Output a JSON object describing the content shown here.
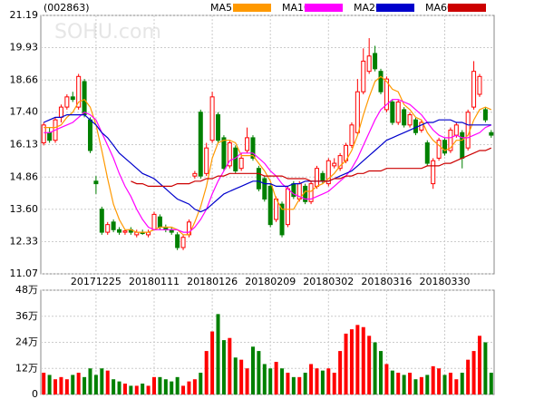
{
  "chart_data": [
    {
      "type": "candlestick",
      "code": "(002863)",
      "watermark": "SOHU.com",
      "categories": [
        null,
        null,
        null,
        null,
        null,
        null,
        null,
        null,
        null,
        "20171225",
        null,
        null,
        null,
        null,
        null,
        null,
        null,
        null,
        null,
        "20180111",
        null,
        null,
        null,
        null,
        null,
        null,
        null,
        null,
        null,
        "20180126",
        null,
        null,
        null,
        null,
        null,
        null,
        null,
        null,
        null,
        "20180209",
        null,
        null,
        null,
        null,
        null,
        null,
        null,
        null,
        null,
        "20180302",
        null,
        null,
        null,
        null,
        null,
        null,
        null,
        null,
        null,
        "20180316",
        null,
        null,
        null,
        null,
        null,
        null,
        null,
        null,
        null,
        "20180330",
        null,
        null,
        null,
        null,
        null,
        null,
        null,
        null
      ],
      "open": [
        16.2,
        16.6,
        16.3,
        17.2,
        17.6,
        18.0,
        17.6,
        18.6,
        17.1,
        14.7,
        13.6,
        12.7,
        13.1,
        12.8,
        12.7,
        12.8,
        12.6,
        12.7,
        12.6,
        12.8,
        13.3,
        12.9,
        12.8,
        12.6,
        12.1,
        12.6,
        14.9,
        17.4,
        15.0,
        16.3,
        17.3,
        16.4,
        15.3,
        16.0,
        15.2,
        15.9,
        16.4,
        15.2,
        14.8,
        14.5,
        13.2,
        13.8,
        13.0,
        14.6,
        14.0,
        14.5,
        13.9,
        14.5,
        15.0,
        14.6,
        15.3,
        15.2,
        15.5,
        16.1,
        16.6,
        18.2,
        19.0,
        19.7,
        19.0,
        17.5,
        17.8,
        17.0,
        17.5,
        16.9,
        17.1,
        16.7,
        16.2,
        14.6,
        15.6,
        16.3,
        15.9,
        16.5,
        16.6,
        16.0,
        17.6,
        18.1,
        17.5,
        16.6
      ],
      "high": [
        17.0,
        16.8,
        17.2,
        17.7,
        18.1,
        18.2,
        18.9,
        18.7,
        17.2,
        14.9,
        13.7,
        13.1,
        13.2,
        12.9,
        12.8,
        12.9,
        12.8,
        12.8,
        12.8,
        13.5,
        13.4,
        13.0,
        12.9,
        12.7,
        12.6,
        13.2,
        15.1,
        17.5,
        16.2,
        18.2,
        17.4,
        16.5,
        16.3,
        16.1,
        15.8,
        16.8,
        16.5,
        15.3,
        14.9,
        14.6,
        14.1,
        13.9,
        14.5,
        14.7,
        14.7,
        14.6,
        14.7,
        15.3,
        15.1,
        15.6,
        15.6,
        15.8,
        16.2,
        17.0,
        18.7,
        19.9,
        20.3,
        20.0,
        19.1,
        18.8,
        17.9,
        17.9,
        17.6,
        17.4,
        17.2,
        17.1,
        16.3,
        15.6,
        16.4,
        16.4,
        16.8,
        17.0,
        16.7,
        17.5,
        19.4,
        18.9,
        17.6,
        16.7
      ],
      "low": [
        16.1,
        16.2,
        16.2,
        17.0,
        17.5,
        17.8,
        17.5,
        17.2,
        15.8,
        14.2,
        12.6,
        12.6,
        12.7,
        12.6,
        12.6,
        12.6,
        12.5,
        12.6,
        12.5,
        12.8,
        12.8,
        12.7,
        12.6,
        12.0,
        12.0,
        12.5,
        14.8,
        14.8,
        14.9,
        16.2,
        16.2,
        15.1,
        15.2,
        15.0,
        15.1,
        15.8,
        15.5,
        14.3,
        13.9,
        12.9,
        13.1,
        12.5,
        12.9,
        14.0,
        13.9,
        13.8,
        13.8,
        14.4,
        14.6,
        14.5,
        15.2,
        15.1,
        15.4,
        16.0,
        16.5,
        18.1,
        18.9,
        19.0,
        18.1,
        17.4,
        16.9,
        16.9,
        16.8,
        16.8,
        16.5,
        16.6,
        15.3,
        14.4,
        15.5,
        15.7,
        15.8,
        16.4,
        15.2,
        15.9,
        17.5,
        18.0,
        17.0,
        16.4
      ],
      "close": [
        16.9,
        16.3,
        17.1,
        17.6,
        18.0,
        17.9,
        18.8,
        17.3,
        15.9,
        14.6,
        12.7,
        13.0,
        12.8,
        12.7,
        12.75,
        12.7,
        12.7,
        12.65,
        12.7,
        13.4,
        12.9,
        12.8,
        12.7,
        12.1,
        12.5,
        13.1,
        15.0,
        14.9,
        16.0,
        18.0,
        16.3,
        15.2,
        16.2,
        15.1,
        15.6,
        16.4,
        15.6,
        14.4,
        14.0,
        13.0,
        14.0,
        12.6,
        14.4,
        14.1,
        14.6,
        13.9,
        14.6,
        15.2,
        14.7,
        15.5,
        15.4,
        15.7,
        16.1,
        16.9,
        18.2,
        19.4,
        19.6,
        19.1,
        18.2,
        18.7,
        17.0,
        17.8,
        16.9,
        17.3,
        16.6,
        17.0,
        15.4,
        15.5,
        16.3,
        15.8,
        16.7,
        16.9,
        15.6,
        17.4,
        19.0,
        18.8,
        17.1,
        16.5
      ],
      "up_color": "#ff0000",
      "down_color": "#008000",
      "series": [
        {
          "name": "MA5",
          "color": "#ff9900",
          "values": [
            16.8,
            16.8,
            16.8,
            16.9,
            17.2,
            17.4,
            17.8,
            17.9,
            17.6,
            16.9,
            15.9,
            14.8,
            13.8,
            13.2,
            12.8,
            12.8,
            12.7,
            12.7,
            12.7,
            12.8,
            12.9,
            12.9,
            12.9,
            12.8,
            12.6,
            12.6,
            13.1,
            13.7,
            14.5,
            15.6,
            16.2,
            16.3,
            16.3,
            16.2,
            15.7,
            15.7,
            15.7,
            15.4,
            15.1,
            14.7,
            14.0,
            13.6,
            13.6,
            13.6,
            14.0,
            14.3,
            14.3,
            14.5,
            14.6,
            14.8,
            15.0,
            15.3,
            15.5,
            15.9,
            16.5,
            17.3,
            18.0,
            18.6,
            18.8,
            18.6,
            18.3,
            18.2,
            17.7,
            17.5,
            17.2,
            17.1,
            16.6,
            16.3,
            16.1,
            15.9,
            16.0,
            16.3,
            16.3,
            16.5,
            17.1,
            17.5,
            17.6,
            17.5
          ]
        },
        {
          "name": "MA10",
          "color": "#ff00ff",
          "values": [
            16.6,
            16.6,
            16.7,
            16.8,
            16.9,
            17.0,
            17.2,
            17.4,
            17.3,
            17.1,
            16.6,
            16.1,
            15.6,
            15.0,
            14.5,
            14.1,
            13.6,
            13.2,
            12.9,
            12.8,
            12.8,
            12.8,
            12.8,
            12.8,
            12.7,
            12.7,
            12.9,
            13.2,
            13.6,
            14.2,
            14.7,
            15.1,
            15.5,
            15.6,
            15.8,
            15.8,
            15.8,
            15.6,
            15.4,
            15.1,
            14.9,
            14.6,
            14.4,
            14.2,
            14.1,
            14.0,
            14.0,
            14.1,
            14.2,
            14.3,
            14.5,
            14.7,
            14.9,
            15.2,
            15.6,
            16.1,
            16.6,
            17.1,
            17.5,
            17.7,
            17.9,
            17.9,
            17.8,
            17.7,
            17.5,
            17.3,
            17.0,
            16.7,
            16.5,
            16.4,
            16.4,
            16.5,
            16.4,
            16.4,
            16.5,
            16.6,
            16.8,
            16.9
          ]
        },
        {
          "name": "MA20",
          "color": "#0000cc",
          "values": [
            17.0,
            17.1,
            17.2,
            17.2,
            17.3,
            17.3,
            17.3,
            17.3,
            17.1,
            16.9,
            16.6,
            16.4,
            16.1,
            15.8,
            15.6,
            15.4,
            15.2,
            15.0,
            14.9,
            14.8,
            14.6,
            14.4,
            14.2,
            14.0,
            13.9,
            13.8,
            13.6,
            13.5,
            13.6,
            13.8,
            14.0,
            14.2,
            14.3,
            14.4,
            14.5,
            14.6,
            14.7,
            14.7,
            14.6,
            14.6,
            14.5,
            14.5,
            14.5,
            14.6,
            14.6,
            14.7,
            14.7,
            14.7,
            14.7,
            14.7,
            14.8,
            14.9,
            15.0,
            15.1,
            15.3,
            15.5,
            15.7,
            15.9,
            16.1,
            16.3,
            16.4,
            16.5,
            16.6,
            16.7,
            16.8,
            16.9,
            17.0,
            17.0,
            17.1,
            17.1,
            17.1,
            17.0,
            17.0,
            16.9,
            16.9,
            16.9,
            16.9,
            16.9
          ]
        },
        {
          "name": "MA60",
          "color": "#cc0000",
          "values": [
            null,
            null,
            null,
            null,
            null,
            null,
            null,
            null,
            null,
            null,
            null,
            null,
            null,
            null,
            null,
            14.7,
            14.6,
            14.6,
            14.5,
            14.5,
            14.5,
            14.5,
            14.5,
            14.6,
            14.6,
            14.6,
            14.7,
            14.7,
            14.8,
            14.8,
            14.9,
            14.9,
            15.0,
            15.0,
            15.0,
            15.0,
            15.0,
            15.0,
            14.9,
            14.9,
            14.9,
            14.9,
            14.8,
            14.8,
            14.8,
            14.8,
            14.7,
            14.7,
            14.7,
            14.7,
            14.8,
            14.8,
            14.9,
            14.9,
            15.0,
            15.0,
            15.1,
            15.1,
            15.1,
            15.2,
            15.2,
            15.2,
            15.2,
            15.2,
            15.2,
            15.2,
            15.3,
            15.3,
            15.3,
            15.4,
            15.4,
            15.5,
            15.6,
            15.7,
            15.8,
            15.9,
            15.9,
            16.0
          ]
        }
      ],
      "ylim": [
        11.07,
        21.19
      ],
      "yticks": [
        11.07,
        12.33,
        {
          "value": 13.6,
          "label": "13.60"
        },
        14.86,
        16.13,
        {
          "value": 17.4,
          "label": "17.40"
        },
        18.66,
        19.93,
        21.19
      ],
      "grid": true
    },
    {
      "type": "bar",
      "values": [
        10,
        9,
        7,
        8,
        7,
        9,
        10,
        8,
        12,
        9,
        12,
        11,
        7,
        6,
        5,
        4,
        4,
        5,
        4,
        8,
        8,
        7,
        6,
        8,
        4,
        6,
        7,
        10,
        20,
        29,
        37,
        25,
        26,
        17,
        16,
        12,
        22,
        20,
        14,
        12,
        15,
        12,
        10,
        8,
        8,
        10,
        14,
        12,
        11,
        12,
        10,
        20,
        28,
        30,
        32,
        31,
        27,
        24,
        20,
        14,
        11,
        10,
        9,
        10,
        7,
        8,
        9,
        13,
        12,
        9,
        10,
        7,
        10,
        16,
        20,
        27,
        24,
        10
      ],
      "ylim": [
        0,
        48
      ],
      "yticks": [
        0,
        {
          "value": 12,
          "label": "12万"
        },
        {
          "value": 24,
          "label": "24万"
        },
        {
          "value": 36,
          "label": "36万"
        },
        {
          "value": 48,
          "label": "48万"
        }
      ],
      "grid": true
    }
  ]
}
